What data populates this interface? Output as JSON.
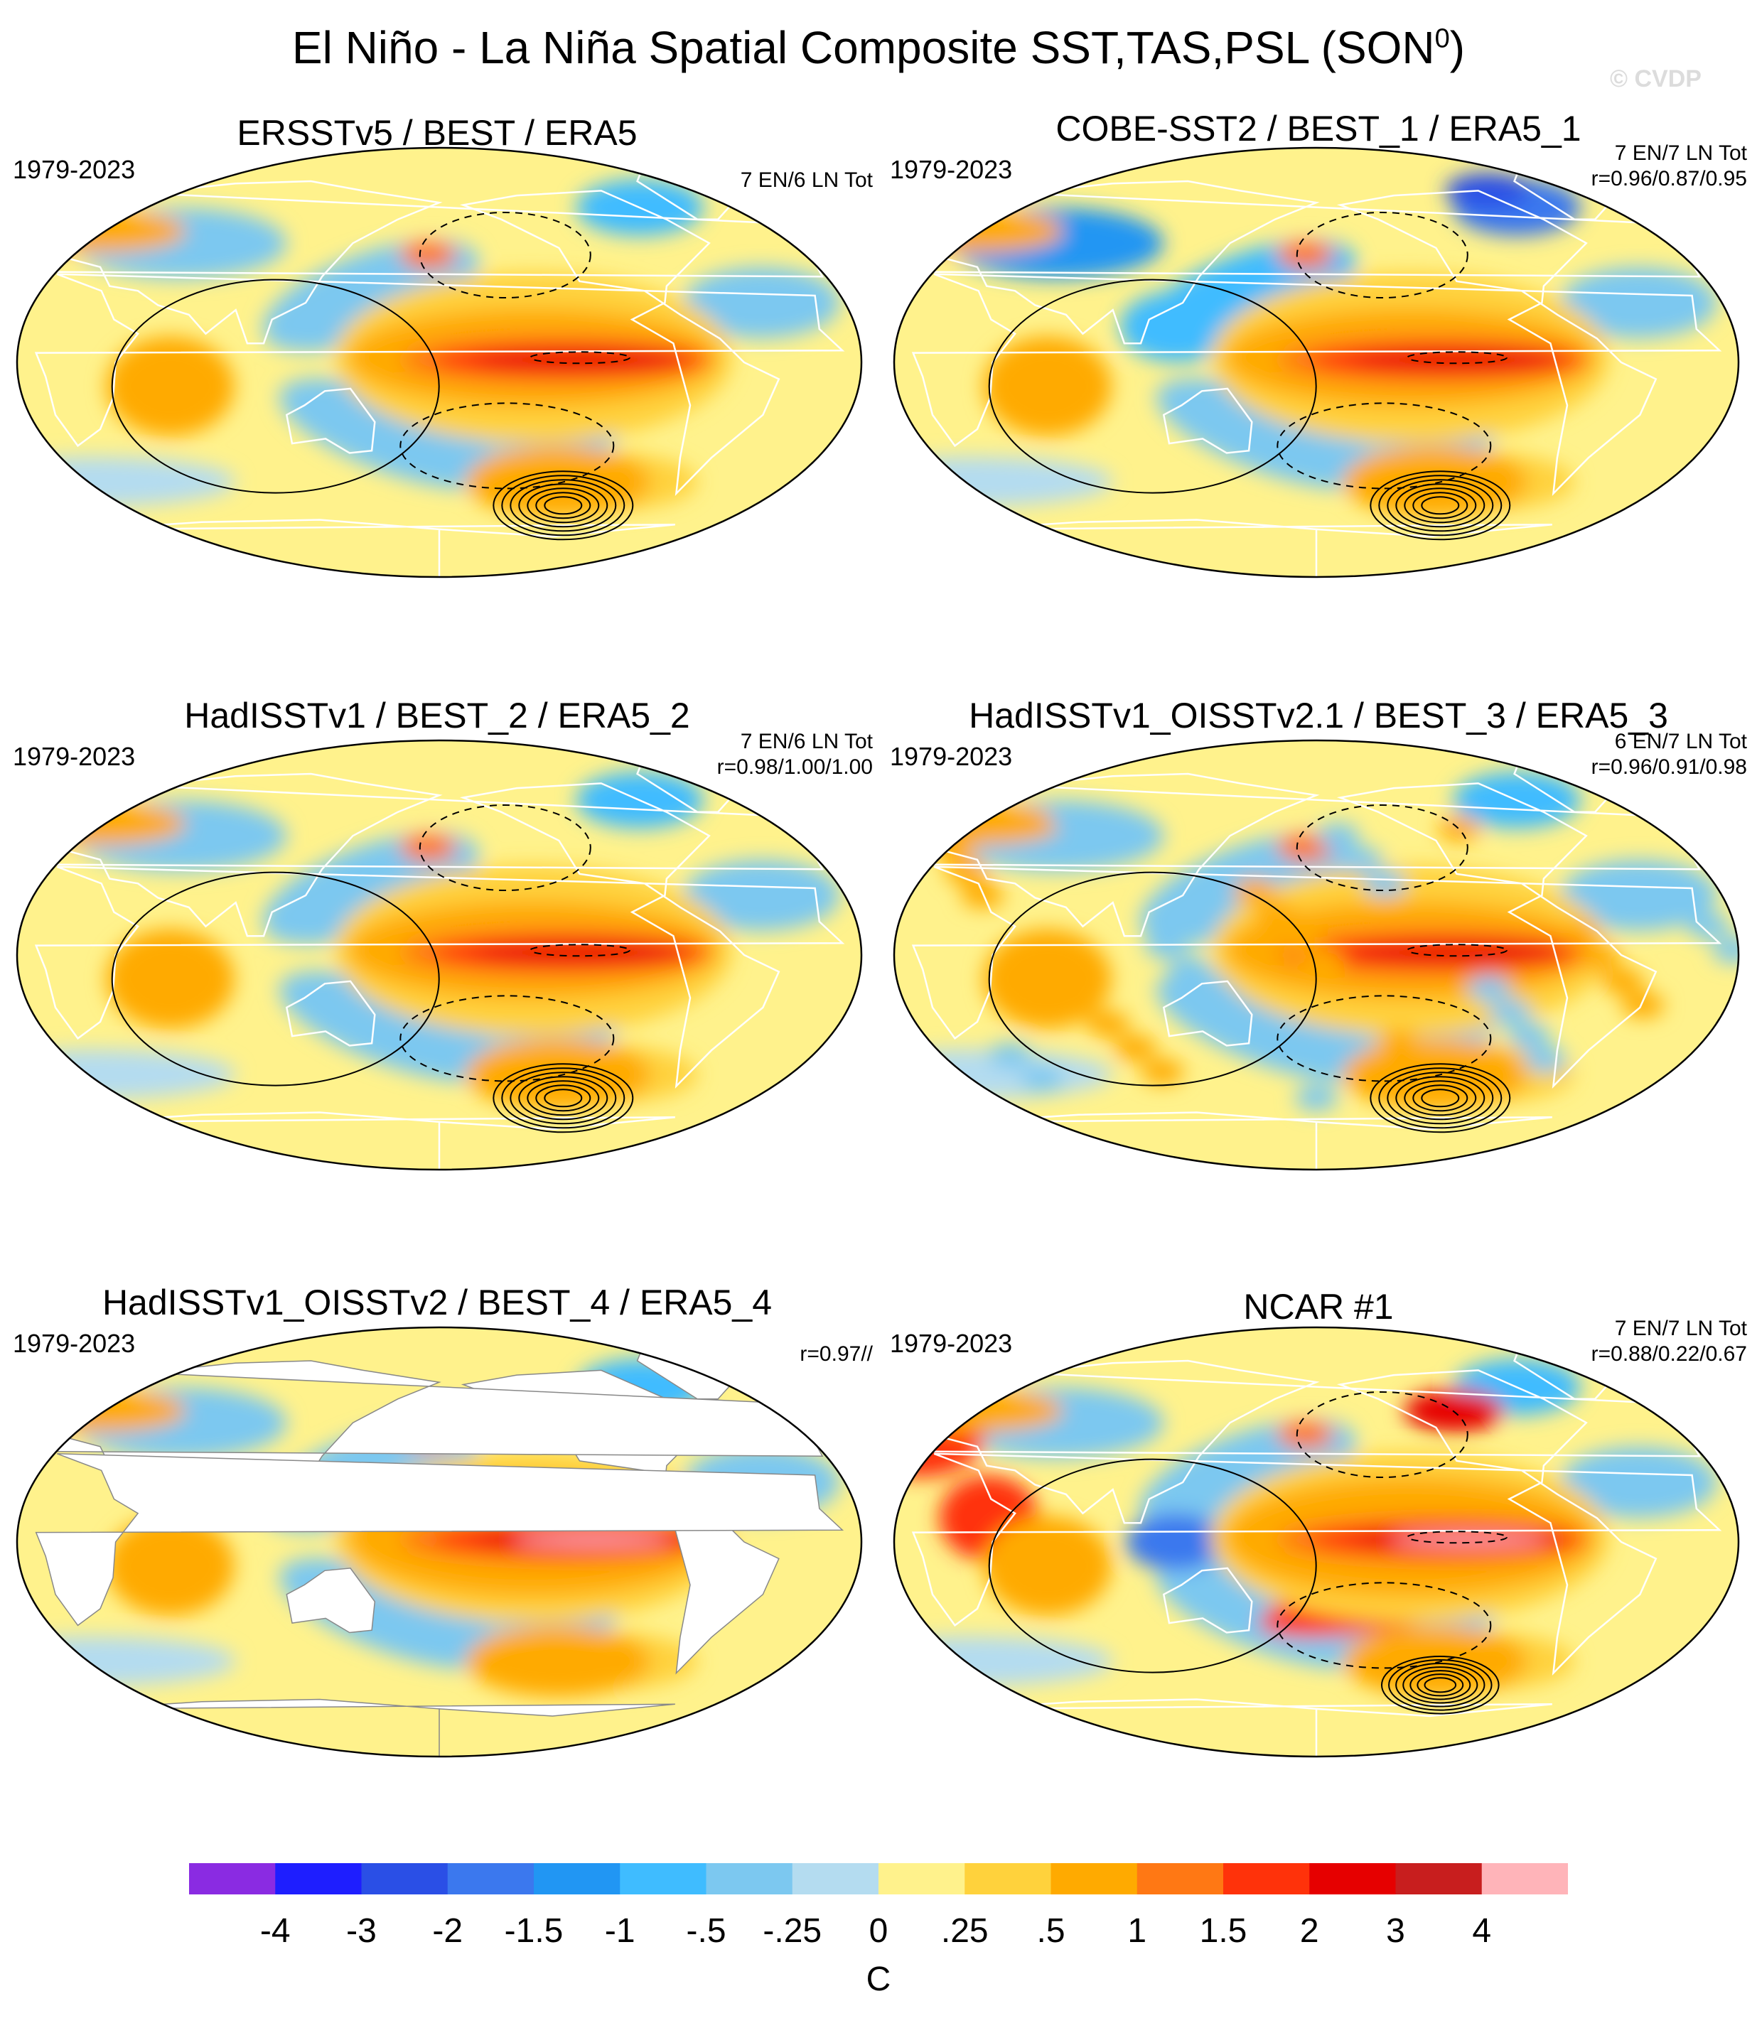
{
  "title": {
    "main": "El Niño - La Niña Spatial Composite SST,TAS,PSL (SON",
    "sup": "0",
    "close": ")"
  },
  "watermark": "© CVDP",
  "panels": [
    {
      "title": "ERSSTv5 / BEST / ERA5",
      "years": "1979-2023",
      "events": "7 EN/6 LN Tot",
      "corr": "",
      "mask_land": false,
      "variant": "obs"
    },
    {
      "title": "COBE-SST2 / BEST_1 / ERA5_1",
      "years": "1979-2023",
      "events": "7 EN/7 LN Tot",
      "corr": "r=0.96/0.87/0.95",
      "mask_land": false,
      "variant": "cool"
    },
    {
      "title": "HadISSTv1 / BEST_2 / ERA5_2",
      "years": "1979-2023",
      "events": "7 EN/6 LN Tot",
      "corr": "r=0.98/1.00/1.00",
      "mask_land": false,
      "variant": "obs"
    },
    {
      "title": "HadISSTv1_OISSTv2.1 / BEST_3 / ERA5_3",
      "years": "1979-2023",
      "events": "6 EN/7 LN Tot",
      "corr": "r=0.96/0.91/0.98",
      "mask_land": false,
      "variant": "noisy"
    },
    {
      "title": "HadISSTv1_OISSTv2 / BEST_4 / ERA5_4",
      "years": "1979-2023",
      "events": "",
      "corr": "r=0.97//",
      "mask_land": true,
      "variant": "ocean"
    },
    {
      "title": "NCAR #1",
      "years": "1979-2023",
      "events": "7 EN/7 LN Tot",
      "corr": "r=0.88/0.22/0.67",
      "mask_land": false,
      "variant": "model"
    }
  ],
  "chart_data": {
    "type": "heatmap",
    "projection": "Robinson (global, Pacific-centred)",
    "fields": [
      "SST (shaded)",
      "TAS (shaded)",
      "PSL (contours)"
    ],
    "units": "C",
    "colorbar": {
      "levels": [
        "-4",
        "-3",
        "-2",
        "-1.5",
        "-1",
        "-.5",
        "-.25",
        "0",
        ".25",
        ".5",
        "1",
        "1.5",
        "2",
        "3",
        "4"
      ],
      "colors": [
        "#8a2be2",
        "#1e1eff",
        "#2a4fe6",
        "#3b78ee",
        "#2196f3",
        "#3fbcff",
        "#7cc8f0",
        "#b4dcf0",
        "#fff28c",
        "#ffd23c",
        "#ffaa00",
        "#ff7814",
        "#ff320a",
        "#e60000",
        "#c81e1e",
        "#ffb4b9"
      ]
    }
  }
}
